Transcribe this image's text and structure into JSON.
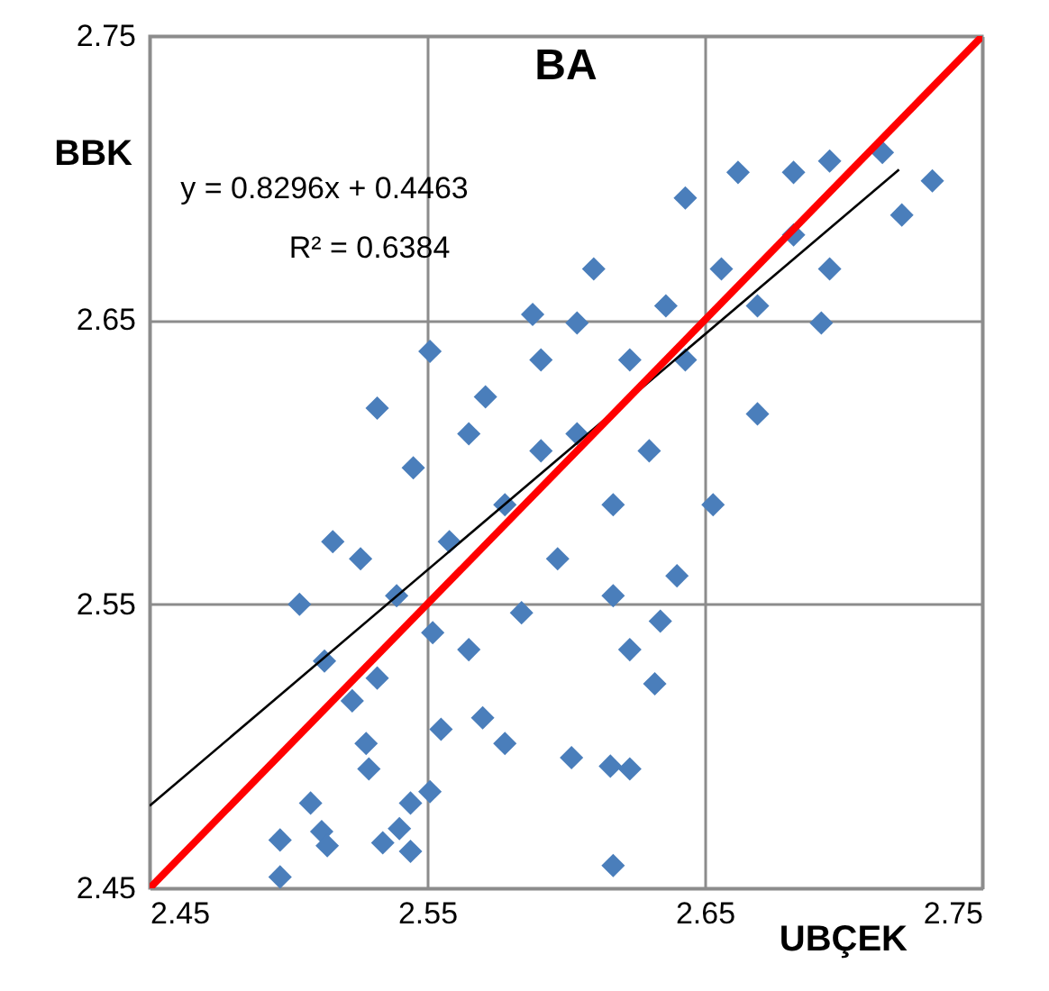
{
  "chart_data": {
    "type": "scatter",
    "title": "BA",
    "xlabel": "UBÇEK",
    "ylabel": "BBK",
    "annotations": [
      "y = 0.8296x + 0.4463",
      "R² = 0.6384"
    ],
    "xlim": [
      2.45,
      2.75
    ],
    "ylim": [
      2.45,
      2.75
    ],
    "xticks": [
      2.45,
      2.55,
      2.65,
      2.75
    ],
    "yticks": [
      2.45,
      2.55,
      2.65,
      2.75
    ],
    "grid": true,
    "series": [
      {
        "color": "#4a7ebb",
        "marker": "diamond",
        "x": [
          2.497,
          2.497,
          2.508,
          2.512,
          2.514,
          2.529,
          2.528,
          2.534,
          2.54,
          2.544,
          2.551,
          2.544,
          2.578,
          2.617,
          2.616,
          2.623,
          2.632,
          2.623,
          2.602,
          2.555,
          2.57,
          2.523,
          2.513,
          2.504,
          2.532,
          2.516,
          2.532,
          2.551,
          2.588,
          2.61,
          2.643,
          2.662,
          2.682,
          2.695,
          2.714,
          2.732,
          2.721,
          2.695,
          2.692,
          2.669,
          2.653,
          2.64,
          2.634,
          2.617,
          2.597,
          2.584,
          2.565,
          2.552,
          2.539,
          2.526,
          2.558,
          2.591,
          2.623,
          2.656,
          2.571,
          2.604,
          2.643,
          2.682,
          2.63,
          2.578,
          2.545,
          2.617,
          2.591,
          2.565,
          2.669,
          2.636,
          2.604
        ],
        "values": [
          2.467,
          2.454,
          2.48,
          2.47,
          2.465,
          2.492,
          2.501,
          2.466,
          2.471,
          2.48,
          2.484,
          2.463,
          2.501,
          2.458,
          2.493,
          2.492,
          2.522,
          2.534,
          2.496,
          2.506,
          2.51,
          2.516,
          2.53,
          2.55,
          2.524,
          2.572,
          2.619,
          2.639,
          2.652,
          2.668,
          2.693,
          2.702,
          2.702,
          2.706,
          2.709,
          2.699,
          2.687,
          2.668,
          2.649,
          2.617,
          2.585,
          2.56,
          2.544,
          2.553,
          2.566,
          2.547,
          2.534,
          2.54,
          2.553,
          2.566,
          2.572,
          2.604,
          2.636,
          2.668,
          2.623,
          2.61,
          2.636,
          2.68,
          2.604,
          2.585,
          2.598,
          2.585,
          2.636,
          2.61,
          2.655,
          2.655,
          2.649
        ]
      },
      {
        "type": "line",
        "marker": "none",
        "color": "#000000",
        "x": [
          2.45,
          2.72
        ],
        "values": [
          2.479,
          2.703
        ]
      },
      {
        "type": "line",
        "marker": "none",
        "color": "#ff0000",
        "x": [
          2.45,
          2.75
        ],
        "values": [
          2.45,
          2.75
        ]
      }
    ]
  }
}
